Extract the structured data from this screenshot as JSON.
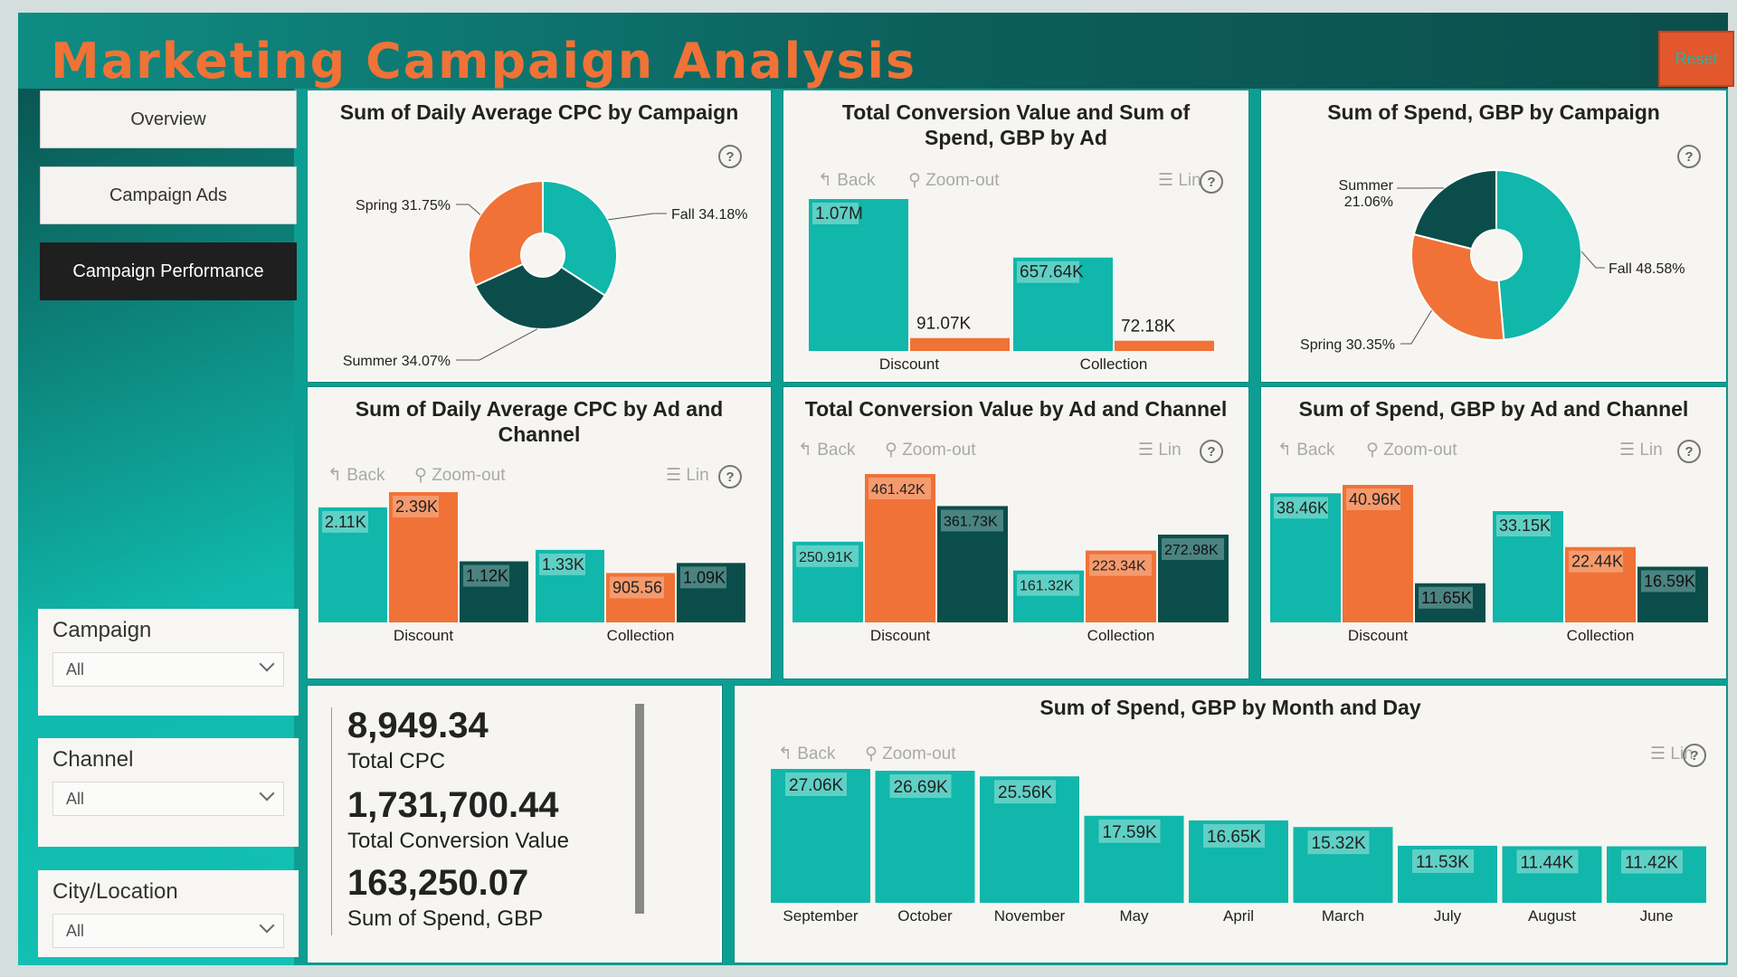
{
  "header": {
    "title": "Marketing Campaign Analysis",
    "reset_label": "Reset"
  },
  "nav": [
    {
      "label": "Overview",
      "active": false
    },
    {
      "label": "Campaign Ads",
      "active": false
    },
    {
      "label": "Campaign Performance",
      "active": true
    }
  ],
  "slicers": [
    {
      "label": "Campaign",
      "value": "All"
    },
    {
      "label": "Channel",
      "value": "All"
    },
    {
      "label": "City/Location",
      "value": "All"
    }
  ],
  "toolbar": {
    "back": "Back",
    "zoom_out": "Zoom-out",
    "lin": "Lin",
    "help": "?"
  },
  "colors": {
    "teal": "#10b7aa",
    "orange": "#f07237",
    "dark_teal": "#0b4d4a"
  },
  "charts": {
    "cpc_campaign": {
      "title": "Sum of Daily Average CPC by Campaign",
      "chart_data": {
        "type": "pie",
        "slices": [
          {
            "label": "Fall 34.18%",
            "value": 34.18,
            "color": "#10b7aa"
          },
          {
            "label": "Summer 34.07%",
            "value": 34.07,
            "color": "#0b4d4a"
          },
          {
            "label": "Spring 31.75%",
            "value": 31.75,
            "color": "#f07237"
          }
        ]
      }
    },
    "conv_ad": {
      "title_line1": "Total Conversion Value and Sum of",
      "title_line2": "Spend, GBP by Ad",
      "chart_data": {
        "type": "bar",
        "categories": [
          "Discount",
          "Collection"
        ],
        "series": [
          {
            "values": [
              1070000,
              657640
            ],
            "labels": [
              "1.07M",
              "657.64K"
            ],
            "color": "#10b7aa"
          },
          {
            "values": [
              91070,
              72180
            ],
            "labels": [
              "91.07K",
              "72.18K"
            ],
            "color": "#f07237"
          }
        ]
      }
    },
    "spend_campaign": {
      "title": "Sum of Spend, GBP by Campaign",
      "chart_data": {
        "type": "pie",
        "slices": [
          {
            "label": "Fall 48.58%",
            "value": 48.58,
            "color": "#10b7aa"
          },
          {
            "label": "Spring 30.35%",
            "value": 30.35,
            "color": "#f07237"
          },
          {
            "label": "Summer 21.06%",
            "value": 21.06,
            "color": "#0b4d4a",
            "line1": "Summer",
            "line2": "21.06%"
          }
        ]
      }
    },
    "cpc_ad_channel": {
      "title_line1": "Sum of Daily Average CPC by Ad and",
      "title_line2": "Channel",
      "chart_data": {
        "type": "bar",
        "categories": [
          "Discount",
          "Collection"
        ],
        "series": [
          {
            "values": [
              2110,
              1330
            ],
            "labels": [
              "2.11K",
              "1.33K"
            ],
            "color": "#10b7aa"
          },
          {
            "values": [
              2390,
              905.56
            ],
            "labels": [
              "2.39K",
              "905.56"
            ],
            "color": "#f07237"
          },
          {
            "values": [
              1120,
              1090
            ],
            "labels": [
              "1.12K",
              "1.09K"
            ],
            "color": "#0b4d4a"
          }
        ]
      }
    },
    "conv_ad_channel": {
      "title": "Total Conversion Value by Ad and Channel",
      "chart_data": {
        "type": "bar",
        "categories": [
          "Discount",
          "Collection"
        ],
        "series": [
          {
            "values": [
              250910,
              161320
            ],
            "labels": [
              "250.91K",
              "161.32K"
            ],
            "color": "#10b7aa"
          },
          {
            "values": [
              461420,
              223340
            ],
            "labels": [
              "461.42K",
              "223.34K"
            ],
            "color": "#f07237"
          },
          {
            "values": [
              361730,
              272980
            ],
            "labels": [
              "361.73K",
              "272.98K"
            ],
            "color": "#0b4d4a"
          }
        ]
      }
    },
    "spend_ad_channel": {
      "title": "Sum of Spend, GBP by Ad and Channel",
      "chart_data": {
        "type": "bar",
        "categories": [
          "Discount",
          "Collection"
        ],
        "series": [
          {
            "values": [
              38460,
              33150
            ],
            "labels": [
              "38.46K",
              "33.15K"
            ],
            "color": "#10b7aa"
          },
          {
            "values": [
              40960,
              22440
            ],
            "labels": [
              "40.96K",
              "22.44K"
            ],
            "color": "#f07237"
          },
          {
            "values": [
              11650,
              16590
            ],
            "labels": [
              "11.65K",
              "16.59K"
            ],
            "color": "#0b4d4a"
          }
        ]
      }
    },
    "spend_month": {
      "title": "Sum of Spend, GBP by Month and Day",
      "chart_data": {
        "type": "bar",
        "categories": [
          "September",
          "October",
          "November",
          "May",
          "April",
          "March",
          "July",
          "August",
          "June"
        ],
        "values": [
          27060,
          26690,
          25560,
          17590,
          16650,
          15320,
          11530,
          11440,
          11420
        ],
        "labels": [
          "27.06K",
          "26.69K",
          "25.56K",
          "17.59K",
          "16.65K",
          "15.32K",
          "11.53K",
          "11.44K",
          "11.42K"
        ],
        "color": "#10b7aa"
      }
    }
  },
  "kpis": [
    {
      "value": "8,949.34",
      "label": "Total CPC"
    },
    {
      "value": "1,731,700.44",
      "label": "Total Conversion Value"
    },
    {
      "value": "163,250.07",
      "label": "Sum of Spend, GBP"
    }
  ]
}
